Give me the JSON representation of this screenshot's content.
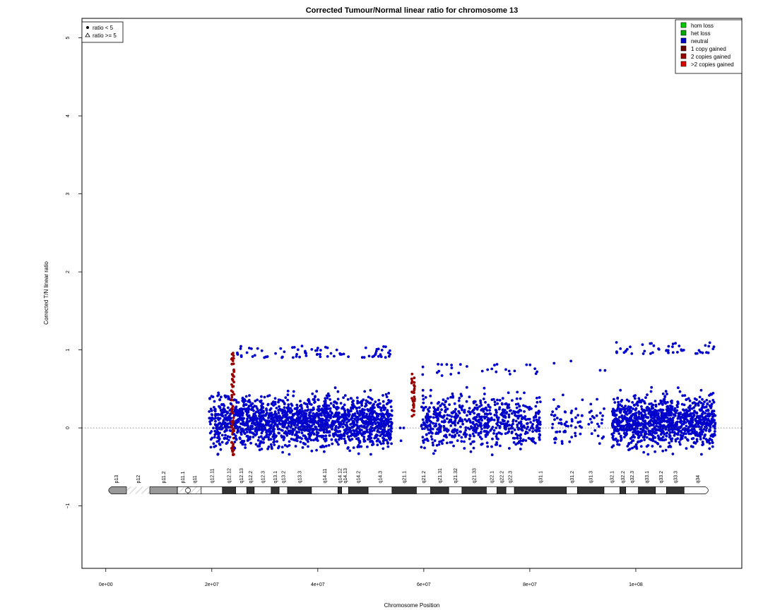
{
  "chart_data": {
    "type": "scatter",
    "title": "Corrected Tumour/Normal linear ratio for chromosome  13",
    "xlabel": "Chromosome Position",
    "ylabel": "Corrected T/N linear ratio",
    "xlim": [
      -4500000,
      120000000
    ],
    "ylim": [
      -1.8,
      5.25
    ],
    "x_ticks": [
      0,
      20000000,
      40000000,
      60000000,
      80000000,
      100000000
    ],
    "x_tick_labels": [
      "0e+00",
      "2e+07",
      "4e+07",
      "6e+07",
      "8e+07",
      "1e+08"
    ],
    "y_ticks": [
      -1,
      0,
      1,
      2,
      3,
      4,
      5
    ],
    "y_tick_labels": [
      "−1",
      "0",
      "1",
      "2",
      "3",
      "4",
      "5"
    ],
    "reference_line": 0,
    "shape_legend": {
      "placement": "top-left",
      "entries": [
        {
          "label": "ratio < 5",
          "symbol": "filled-circle"
        },
        {
          "label": "ratio >= 5",
          "symbol": "open-triangle"
        }
      ]
    },
    "state_legend": {
      "placement": "top-right",
      "entries": [
        {
          "label": "hom loss",
          "color": "#00cc00"
        },
        {
          "label": "het loss",
          "color": "#00aa00"
        },
        {
          "label": "neutral",
          "color": "#0000cc"
        },
        {
          "label": "1 copy gained",
          "color": "#660000"
        },
        {
          "label": "2 copies gained",
          "color": "#990000"
        },
        {
          "label": ">2 copies gained",
          "color": "#dd0000"
        }
      ]
    },
    "segments": [
      {
        "state": "neutral",
        "color": "#0000cc",
        "x_start": 19500000,
        "x_end": 23700000,
        "ymin": -0.5,
        "ymax": 0.45,
        "n": 180
      },
      {
        "state": "2 copies gained",
        "color": "#990000",
        "x_start": 23700000,
        "x_end": 24200000,
        "ymin": -0.35,
        "ymax": 1.0,
        "n": 70
      },
      {
        "state": "neutral",
        "color": "#0000cc",
        "x_start": 24200000,
        "x_end": 54000000,
        "ymin": -0.45,
        "ymax": 1.05,
        "n": 1700
      },
      {
        "state": "neutral",
        "color": "#0000cc",
        "x_start": 55500000,
        "x_end": 56500000,
        "ymin": -0.3,
        "ymax": 0.0,
        "n": 3
      },
      {
        "state": "2 copies gained",
        "color": "#990000",
        "x_start": 57700000,
        "x_end": 58300000,
        "ymin": 0.15,
        "ymax": 0.7,
        "n": 30
      },
      {
        "state": "neutral",
        "color": "#0000cc",
        "x_start": 59500000,
        "x_end": 82000000,
        "ymin": -0.45,
        "ymax": 0.82,
        "n": 700
      },
      {
        "state": "neutral",
        "color": "#0000cc",
        "x_start": 84000000,
        "x_end": 90000000,
        "ymin": -0.2,
        "ymax": 0.92,
        "n": 60
      },
      {
        "state": "neutral",
        "color": "#0000cc",
        "x_start": 91000000,
        "x_end": 94500000,
        "ymin": -0.2,
        "ymax": 0.78,
        "n": 25
      },
      {
        "state": "neutral",
        "color": "#0000cc",
        "x_start": 95500000,
        "x_end": 115000000,
        "ymin": -0.5,
        "ymax": 1.1,
        "n": 1100
      }
    ],
    "ideogram": {
      "y": -0.8,
      "bands": [
        {
          "name": "p13",
          "start": 0,
          "end": 3900000,
          "stain": "gvar"
        },
        {
          "name": "p12",
          "start": 3900000,
          "end": 8300000,
          "stain": "stalk"
        },
        {
          "name": "p11.2",
          "start": 8300000,
          "end": 13500000,
          "stain": "gvar"
        },
        {
          "name": "p11.1",
          "start": 13500000,
          "end": 15500000,
          "stain": "acen"
        },
        {
          "name": "q11",
          "start": 15500000,
          "end": 18000000,
          "stain": "acen"
        },
        {
          "name": "q12.11",
          "start": 18000000,
          "end": 22000000,
          "stain": "gneg"
        },
        {
          "name": "q12.12",
          "start": 22000000,
          "end": 24500000,
          "stain": "gpos"
        },
        {
          "name": "q12.13",
          "start": 24500000,
          "end": 26600000,
          "stain": "gneg"
        },
        {
          "name": "q12.2",
          "start": 26600000,
          "end": 28000000,
          "stain": "gpos"
        },
        {
          "name": "q12.3",
          "start": 28000000,
          "end": 31200000,
          "stain": "gneg"
        },
        {
          "name": "q13.1",
          "start": 31200000,
          "end": 32700000,
          "stain": "gpos"
        },
        {
          "name": "q13.2",
          "start": 32700000,
          "end": 34300000,
          "stain": "gneg"
        },
        {
          "name": "q13.3",
          "start": 34300000,
          "end": 38800000,
          "stain": "gpos"
        },
        {
          "name": "q14.11",
          "start": 38800000,
          "end": 43800000,
          "stain": "gneg"
        },
        {
          "name": "q14.12",
          "start": 43800000,
          "end": 44500000,
          "stain": "gpos"
        },
        {
          "name": "q14.13",
          "start": 44500000,
          "end": 45800000,
          "stain": "gneg"
        },
        {
          "name": "q14.2",
          "start": 45800000,
          "end": 49500000,
          "stain": "gpos"
        },
        {
          "name": "q14.3",
          "start": 49500000,
          "end": 54000000,
          "stain": "gneg"
        },
        {
          "name": "q21.1",
          "start": 54000000,
          "end": 58600000,
          "stain": "gpos"
        },
        {
          "name": "q21.2",
          "start": 58600000,
          "end": 61300000,
          "stain": "gneg"
        },
        {
          "name": "q21.31",
          "start": 61300000,
          "end": 64700000,
          "stain": "gpos"
        },
        {
          "name": "q21.32",
          "start": 64700000,
          "end": 67200000,
          "stain": "gneg"
        },
        {
          "name": "q21.33",
          "start": 67200000,
          "end": 71800000,
          "stain": "gpos"
        },
        {
          "name": "q22.1",
          "start": 71800000,
          "end": 73800000,
          "stain": "gneg"
        },
        {
          "name": "q22.2",
          "start": 73800000,
          "end": 75500000,
          "stain": "gpos"
        },
        {
          "name": "q22.3",
          "start": 75500000,
          "end": 77100000,
          "stain": "gneg"
        },
        {
          "name": "q31.1",
          "start": 77100000,
          "end": 86900000,
          "stain": "gpos"
        },
        {
          "name": "q31.2",
          "start": 86900000,
          "end": 89000000,
          "stain": "gneg"
        },
        {
          "name": "q31.3",
          "start": 89000000,
          "end": 94000000,
          "stain": "gpos"
        },
        {
          "name": "q32.1",
          "start": 94000000,
          "end": 97000000,
          "stain": "gneg"
        },
        {
          "name": "q32.2",
          "start": 97000000,
          "end": 98100000,
          "stain": "gpos"
        },
        {
          "name": "q32.3",
          "start": 98100000,
          "end": 100500000,
          "stain": "gneg"
        },
        {
          "name": "q33.1",
          "start": 100500000,
          "end": 103700000,
          "stain": "gpos"
        },
        {
          "name": "q33.2",
          "start": 103700000,
          "end": 105800000,
          "stain": "gneg"
        },
        {
          "name": "q33.3",
          "start": 105800000,
          "end": 109100000,
          "stain": "gpos"
        },
        {
          "name": "q34",
          "start": 109100000,
          "end": 114200000,
          "stain": "gneg"
        }
      ]
    }
  }
}
